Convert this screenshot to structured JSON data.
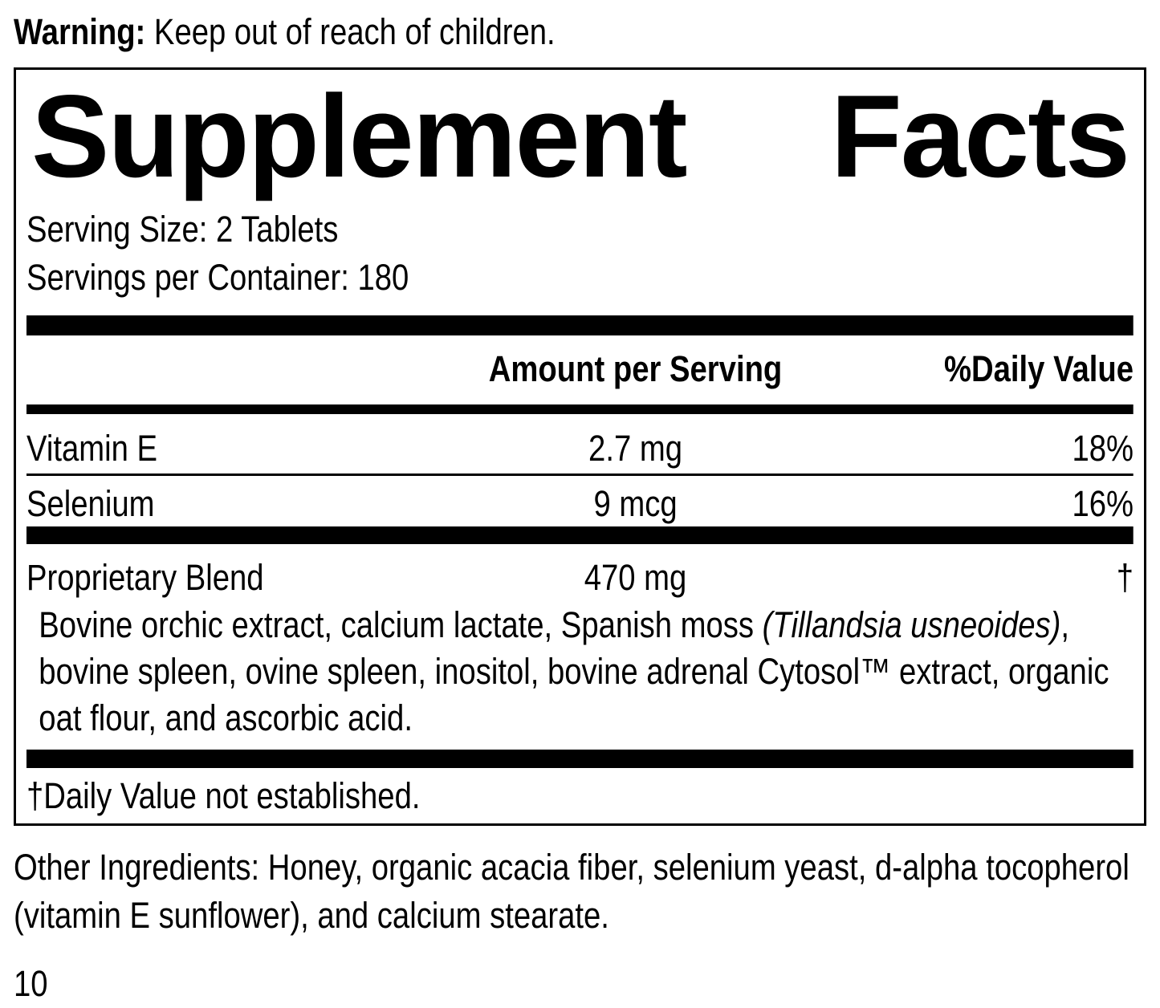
{
  "warning": {
    "label": "Warning:",
    "text": " Keep out of reach of children."
  },
  "panel": {
    "title": "Supplement Facts",
    "title_word_1": "Supplement",
    "title_word_2": "Facts",
    "serving_size": "Serving Size: 2 Tablets",
    "servings_per_container": "Servings per Container: 180",
    "columns": {
      "amount": "Amount per Serving",
      "daily_value": "%Daily Value"
    },
    "nutrients": [
      {
        "name": "Vitamin E",
        "amount": "2.7 mg",
        "dv": "18%"
      },
      {
        "name": "Selenium",
        "amount": "9 mcg",
        "dv": "16%"
      }
    ],
    "blend": {
      "name": "Proprietary Blend",
      "amount": "470 mg",
      "dv": "†",
      "description_prefix": "Bovine orchic extract, calcium lactate, Spanish moss ",
      "description_italic": "(Tillandsia usneoides)",
      "description_suffix": ", bovine spleen, ovine spleen, inositol, bovine adrenal Cytosol™ extract, organic oat flour, and ascorbic acid."
    },
    "footnote": "†Daily Value not established."
  },
  "other_ingredients": "Other Ingredients: Honey, organic acacia fiber, selenium yeast, d-alpha tocopherol (vitamin E sunflower), and calcium stearate.",
  "page_number": "10",
  "colors": {
    "ink": "#000000",
    "background": "#ffffff"
  }
}
